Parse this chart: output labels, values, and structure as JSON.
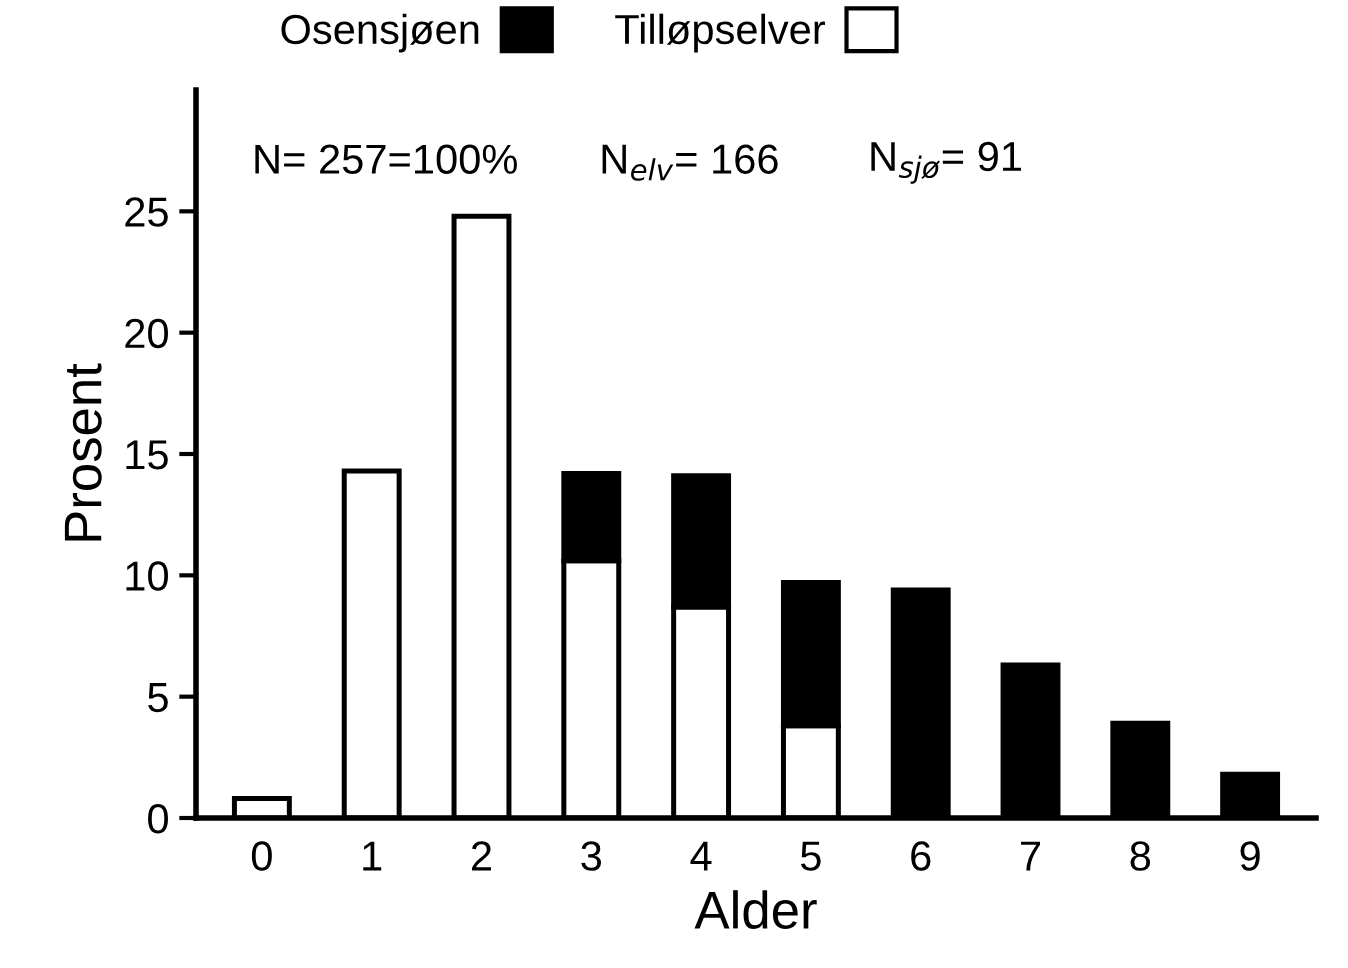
{
  "chart_data": {
    "type": "bar",
    "stacked": true,
    "xlabel": "Alder",
    "ylabel": "Prosent",
    "categories": [
      "0",
      "1",
      "2",
      "3",
      "4",
      "5",
      "6",
      "7",
      "8",
      "9"
    ],
    "series": [
      {
        "name": "Tilløpselver",
        "color": "#ffffff",
        "values": [
          0.8,
          14.3,
          24.8,
          10.6,
          8.7,
          3.8,
          null,
          null,
          null,
          null
        ]
      },
      {
        "name": "Osensjøen",
        "color": "#000000",
        "values": [
          null,
          null,
          null,
          3.6,
          5.4,
          5.9,
          9.4,
          6.3,
          3.9,
          1.8
        ]
      }
    ],
    "ylim": [
      0,
      30
    ],
    "yticks": [
      0,
      5,
      10,
      15,
      20,
      25
    ],
    "grid": false,
    "legend": "top",
    "annotations": [
      "N= 257=100%",
      "N$_{elv}$= 166",
      "N$_{sjø}$= 91"
    ]
  }
}
